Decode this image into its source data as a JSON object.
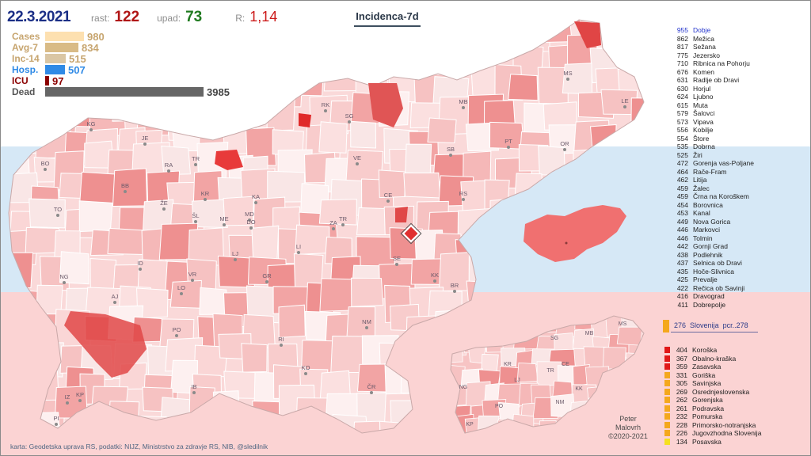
{
  "header": {
    "date": "22.3.2021",
    "rast_label": "rast:",
    "rast_value": "122",
    "upad_label": "upad:",
    "upad_value": "73",
    "r_label": "R:",
    "r_value": "1,14",
    "map_title": "Incidenca-7d"
  },
  "stats": [
    {
      "label": "Cases",
      "value": "980",
      "ratio": 0.246,
      "color": "#fde0b0",
      "label_color": "#c7a56f",
      "value_color": "#c7a56f"
    },
    {
      "label": "Avg-7",
      "value": "834",
      "ratio": 0.209,
      "color": "#d9bb86",
      "label_color": "#c7a56f",
      "value_color": "#c7a56f"
    },
    {
      "label": "Inc-14",
      "value": "515",
      "ratio": 0.129,
      "color": "#dac6a4",
      "label_color": "#c7a56f",
      "value_color": "#c7a56f"
    },
    {
      "label": "Hosp.",
      "value": "507",
      "ratio": 0.127,
      "color": "#2f8ae6",
      "label_color": "#2f8ae6",
      "value_color": "#2f8ae6"
    },
    {
      "label": "ICU",
      "value": "97",
      "ratio": 0.024,
      "color": "#8b0000",
      "label_color": "#8b0000",
      "value_color": "#8b0000"
    },
    {
      "label": "Dead",
      "value": "3985",
      "ratio": 1.0,
      "color": "#666666",
      "label_color": "#555555",
      "value_color": "#444444"
    }
  ],
  "top_municipalities": [
    {
      "value": "955",
      "name": "Dobje",
      "highlight": true
    },
    {
      "value": "862",
      "name": "Mežica"
    },
    {
      "value": "817",
      "name": "Sežana"
    },
    {
      "value": "775",
      "name": "Jezersko"
    },
    {
      "value": "710",
      "name": "Ribnica na Pohorju"
    },
    {
      "value": "676",
      "name": "Komen"
    },
    {
      "value": "631",
      "name": "Radlje ob Dravi"
    },
    {
      "value": "630",
      "name": "Horjul"
    },
    {
      "value": "624",
      "name": "Ljubno"
    },
    {
      "value": "615",
      "name": "Muta"
    },
    {
      "value": "579",
      "name": "Šalovci"
    },
    {
      "value": "573",
      "name": "Vipava"
    },
    {
      "value": "556",
      "name": "Kobilje"
    },
    {
      "value": "554",
      "name": "Štore"
    },
    {
      "value": "535",
      "name": "Dobrna"
    },
    {
      "value": "525",
      "name": "Žiri"
    },
    {
      "value": "472",
      "name": "Gorenja vas-Poljane"
    },
    {
      "value": "464",
      "name": "Rače-Fram"
    },
    {
      "value": "462",
      "name": "Litija"
    },
    {
      "value": "459",
      "name": "Žalec"
    },
    {
      "value": "459",
      "name": "Črna na Koroškem"
    },
    {
      "value": "454",
      "name": "Borovnica"
    },
    {
      "value": "453",
      "name": "Kanal"
    },
    {
      "value": "449",
      "name": "Nova Gorica"
    },
    {
      "value": "446",
      "name": "Markovci"
    },
    {
      "value": "446",
      "name": "Tolmin"
    },
    {
      "value": "442",
      "name": "Gornji Grad"
    },
    {
      "value": "438",
      "name": "Podlehnik"
    },
    {
      "value": "437",
      "name": "Selnica ob Dravi"
    },
    {
      "value": "435",
      "name": "Hoče-Slivnica"
    },
    {
      "value": "425",
      "name": "Prevalje"
    },
    {
      "value": "422",
      "name": "Rečica ob Savinji"
    },
    {
      "value": "416",
      "name": "Dravograd"
    },
    {
      "value": "411",
      "name": "Dobrepolje"
    }
  ],
  "slovenia": {
    "value": "276",
    "name": "Slovenija",
    "suffix": "pcr..278",
    "color": "#f4a81d"
  },
  "regions": [
    {
      "value": "404",
      "name": "Koroška",
      "color": "#e01818"
    },
    {
      "value": "367",
      "name": "Obalno-kraška",
      "color": "#e01818"
    },
    {
      "value": "359",
      "name": "Zasavska",
      "color": "#e01818"
    },
    {
      "value": "331",
      "name": "Goriška",
      "color": "#f4a81d"
    },
    {
      "value": "305",
      "name": "Savinjska",
      "color": "#f4a81d"
    },
    {
      "value": "269",
      "name": "Osrednjeslovenska",
      "color": "#f4a81d"
    },
    {
      "value": "262",
      "name": "Gorenjska",
      "color": "#f4a81d"
    },
    {
      "value": "261",
      "name": "Podravska",
      "color": "#f4a81d"
    },
    {
      "value": "232",
      "name": "Pomurska",
      "color": "#f4a81d"
    },
    {
      "value": "228",
      "name": "Primorsko-notranjska",
      "color": "#f4a81d"
    },
    {
      "value": "226",
      "name": "Jugovzhodna Slovenija",
      "color": "#f4a81d"
    },
    {
      "value": "134",
      "name": "Posavska",
      "color": "#f5e020"
    }
  ],
  "map_labels": [
    "KG",
    "JE",
    "BO",
    "RA",
    "TR",
    "BB",
    "KR",
    "ŽE",
    "ŠL",
    "ME",
    "KA",
    "MD",
    "TO",
    "LJ",
    "DO",
    "ID",
    "VR",
    "LO",
    "AJ",
    "NG",
    "LI",
    "GR",
    "PO",
    "RI",
    "KO",
    "IB",
    "KP",
    "IZ",
    "PI",
    "RK",
    "SG",
    "MB",
    "MS",
    "LE",
    "PT",
    "OR",
    "SB",
    "VE",
    "CE",
    "RS",
    "ZA",
    "TR",
    "SE",
    "KK",
    "BR",
    "NM",
    "ČR"
  ],
  "inset_labels": [
    "SG",
    "MB",
    "MS",
    "KR",
    "LJ",
    "TR",
    "CE",
    "NG",
    "KK",
    "PO",
    "NM",
    "KP"
  ],
  "author": {
    "line1": "Peter",
    "line2": "Malovrh",
    "line3": "©2020-2021"
  },
  "credit": "karta: Geodetska uprava RS,  podatki: NIJZ, Ministrstvo za zdravje RS, NIB, @sledilnik"
}
